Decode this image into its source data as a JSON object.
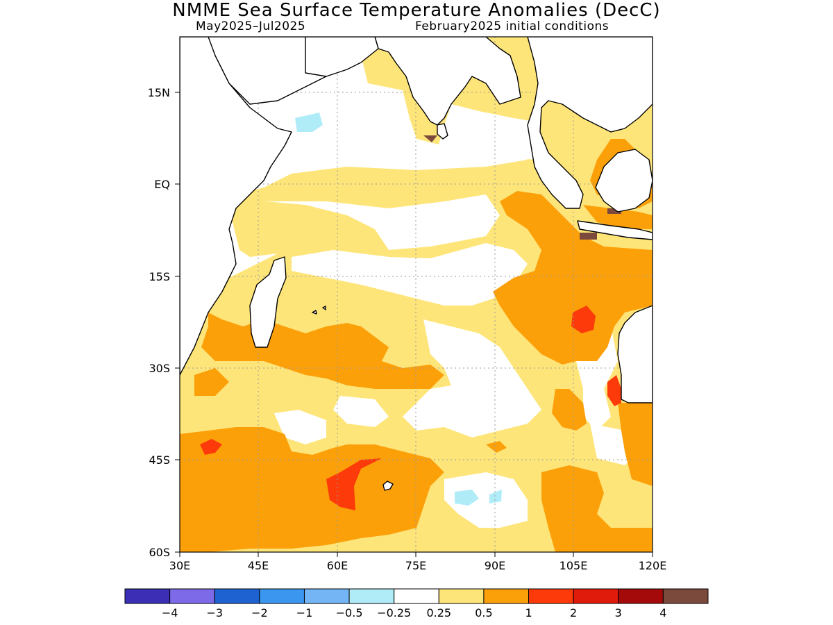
{
  "title": "NMME Sea Surface Temperature Anomalies (DecC)",
  "subtitle_left": "May2025–Jul2025",
  "subtitle_right": "February2025 initial conditions",
  "map": {
    "lat_labels": [
      "15N",
      "EQ",
      "15S",
      "30S",
      "45S",
      "60S"
    ],
    "lon_labels": [
      "30E",
      "45E",
      "60E",
      "75E",
      "90E",
      "105E",
      "120E"
    ],
    "colors": {
      "white": "#ffffff",
      "light_yellow": "#fee57a",
      "orange": "#fca00a",
      "red_orange": "#fc3a0a",
      "light_cyan": "#b0ecf8",
      "brown": "#7b4a3c",
      "coast": "#000000"
    }
  },
  "colorbar": {
    "colors": [
      "#3c2fb6",
      "#7c6ae8",
      "#1e62d2",
      "#3b96f0",
      "#74b6f5",
      "#b0ecf8",
      "#ffffff",
      "#fee57a",
      "#fca00a",
      "#fc3a0a",
      "#e01b0b",
      "#a50a0a",
      "#7b4a3c"
    ],
    "labels": [
      "−4",
      "−3",
      "−2",
      "−1",
      "−0.5",
      "−0.25",
      "0.25",
      "0.5",
      "1",
      "2",
      "3",
      "4"
    ]
  }
}
